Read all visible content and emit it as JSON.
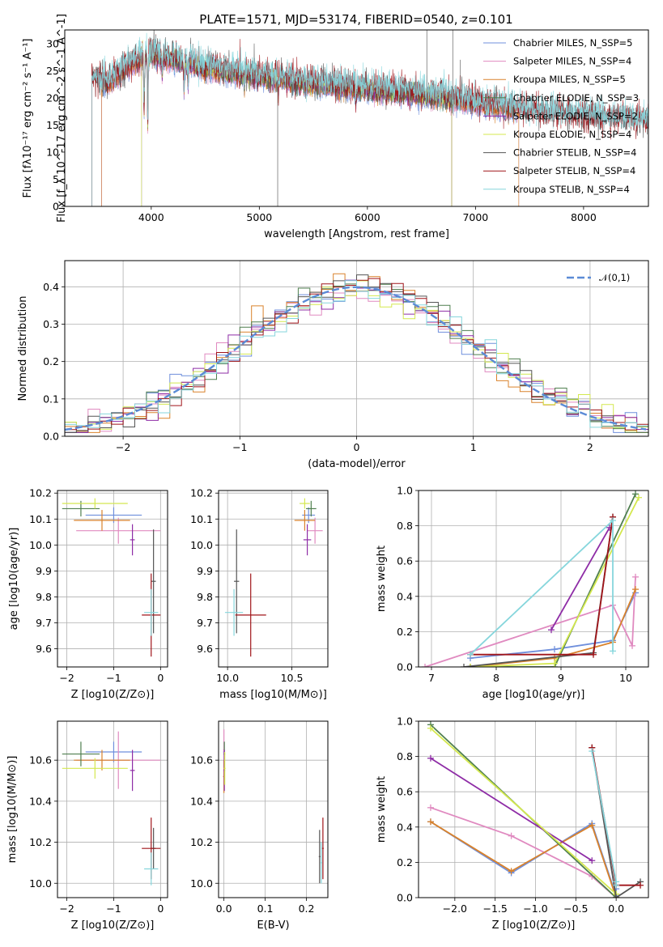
{
  "title": "PLATE=1571, MJD=53174, FIBERID=0540, z=0.101",
  "colors": {
    "Chabrier MILES": "#6f8fdc",
    "Salpeter MILES": "#e08ac0",
    "Kroupa MILES": "#d9822b",
    "Chabrier ELODIE": "#4f7f4f",
    "Salpeter ELODIE": "#8e2ca6",
    "Kroupa ELODIE": "#d4e84f",
    "Chabrier STELIB": "#555555",
    "Salpeter STELIB": "#a0151a",
    "Kroupa STELIB": "#86d6dc",
    "normal": "#5b8bd6"
  },
  "chart_data": [
    {
      "id": "spectrum",
      "type": "line",
      "xlabel": "wavelength [Angstrom, rest frame]",
      "ylabel": "Flux [f_λ 10^-17 erg cm^-2 s^-1 A^-1]",
      "xlim": [
        3200,
        8600
      ],
      "ylim": [
        0,
        32.5
      ],
      "xticks": [
        4000,
        5000,
        6000,
        7000,
        8000
      ],
      "yticks": [
        0,
        5,
        10,
        15,
        20,
        25,
        30
      ],
      "legend_position": "top-right",
      "legend": [
        {
          "name": "Chabrier MILES, N_SSP=5",
          "model": "Chabrier MILES",
          "nssp": 5
        },
        {
          "name": "Salpeter MILES, N_SSP=4",
          "model": "Salpeter MILES",
          "nssp": 4
        },
        {
          "name": "Kroupa MILES, N_SSP=5",
          "model": "Kroupa MILES",
          "nssp": 5
        },
        {
          "name": "Chabrier ELODIE, N_SSP=3",
          "model": "Chabrier ELODIE",
          "nssp": 3
        },
        {
          "name": "Salpeter ELODIE, N_SSP=2",
          "model": "Salpeter ELODIE",
          "nssp": 2
        },
        {
          "name": "Kroupa ELODIE, N_SSP=4",
          "model": "Kroupa ELODIE",
          "nssp": 4
        },
        {
          "name": "Chabrier STELIB, N_SSP=4",
          "model": "Chabrier STELIB",
          "nssp": 4
        },
        {
          "name": "Salpeter STELIB, N_SSP=4",
          "model": "Salpeter STELIB",
          "nssp": 4
        },
        {
          "name": "Kroupa STELIB, N_SSP=4",
          "model": "Kroupa STELIB",
          "nssp": 4
        }
      ],
      "continuum": {
        "x": [
          3450,
          3600,
          3800,
          4000,
          4200,
          4500,
          5000,
          5500,
          6000,
          6500,
          7000,
          7500,
          8000,
          8500
        ],
        "y": [
          23.5,
          22.5,
          26,
          28,
          27,
          25.5,
          23.8,
          22.5,
          21.5,
          20.5,
          19,
          17.3,
          16.3,
          15.5
        ]
      },
      "absorption_lines": [
        {
          "x": 3934,
          "depth": 10
        },
        {
          "x": 3968,
          "depth": 13
        },
        {
          "x": 4102,
          "depth": 4
        },
        {
          "x": 4304,
          "depth": 5
        },
        {
          "x": 4340,
          "depth": 4
        },
        {
          "x": 4861,
          "depth": 2
        },
        {
          "x": 5175,
          "depth": 3
        },
        {
          "x": 5893,
          "depth": 2.5
        }
      ],
      "model_ranges": [
        {
          "model": "Chabrier MILES",
          "range": [
            3540,
            7400
          ]
        },
        {
          "model": "Salpeter MILES",
          "range": [
            3540,
            7400
          ]
        },
        {
          "model": "Kroupa MILES",
          "range": [
            3540,
            7400
          ]
        },
        {
          "model": "Chabrier ELODIE",
          "range": [
            3910,
            6780
          ]
        },
        {
          "model": "Salpeter ELODIE",
          "range": [
            3910,
            6780
          ]
        },
        {
          "model": "Kroupa ELODIE",
          "range": [
            3910,
            6780
          ]
        },
        {
          "model": "Chabrier STELIB",
          "range": [
            3450,
            8600
          ]
        },
        {
          "model": "Salpeter STELIB",
          "range": [
            3450,
            8600
          ]
        },
        {
          "model": "Kroupa STELIB",
          "range": [
            3450,
            8600
          ]
        }
      ],
      "data_spikes": [
        {
          "x": 5170,
          "y": 0
        },
        {
          "x": 6550,
          "y": 32.5
        },
        {
          "x": 6790,
          "y": 32.5
        },
        {
          "x": 6860,
          "y": 27
        }
      ]
    },
    {
      "id": "residuals",
      "type": "histogram",
      "xlabel": "(data-model)/error",
      "ylabel": "Normed distribution",
      "xlim": [
        -2.5,
        2.5
      ],
      "ylim": [
        0,
        0.47
      ],
      "xticks": [
        -2,
        -1,
        0,
        1,
        2
      ],
      "yticks": [
        0.0,
        0.1,
        0.2,
        0.3,
        0.4
      ],
      "grid": true,
      "legend": [
        {
          "name": "𝒩(0,1)",
          "style": "dashed"
        }
      ],
      "legend_position": "top-right",
      "bin_width": 0.1
    },
    {
      "id": "z-age",
      "type": "errorbar",
      "xlabel": "Z [log10(Z/Z⊙)]",
      "ylabel": "age [log10(age/yr)]",
      "xlim": [
        -2.2,
        0.15
      ],
      "ylim": [
        9.53,
        10.21
      ],
      "xticks": [
        -2,
        -1,
        0
      ],
      "yticks": [
        9.6,
        9.7,
        9.8,
        9.9,
        10.0,
        10.1,
        10.2
      ],
      "grid": true,
      "points": [
        {
          "model": "Chabrier MILES",
          "x": -1.0,
          "xerr": 0.6,
          "y": 10.115,
          "yerr": 0.03
        },
        {
          "model": "Salpeter MILES",
          "x": -0.9,
          "xerr": 0.9,
          "y": 10.055,
          "yerr": 0.05
        },
        {
          "model": "Kroupa MILES",
          "x": -1.25,
          "xerr": 0.6,
          "y": 10.095,
          "yerr": 0.04
        },
        {
          "model": "Chabrier ELODIE",
          "x": -1.7,
          "xerr": 0.4,
          "y": 10.14,
          "yerr": 0.03
        },
        {
          "model": "Salpeter ELODIE",
          "x": -0.6,
          "xerr": 0.05,
          "y": 10.02,
          "yerr": 0.06
        },
        {
          "model": "Kroupa ELODIE",
          "x": -1.4,
          "xerr": 0.7,
          "y": 10.16,
          "yerr": 0.02
        },
        {
          "model": "Chabrier STELIB",
          "x": -0.15,
          "xerr": 0.05,
          "y": 9.86,
          "yerr": 0.2
        },
        {
          "model": "Salpeter STELIB",
          "x": -0.2,
          "xerr": 0.2,
          "y": 9.73,
          "yerr": 0.16
        },
        {
          "model": "Kroupa STELIB",
          "x": -0.2,
          "xerr": 0.15,
          "y": 9.74,
          "yerr": 0.09
        }
      ]
    },
    {
      "id": "mass-age",
      "type": "errorbar",
      "xlabel": "mass [log10(M/M⊙)]",
      "ylabel": "",
      "xlim": [
        9.93,
        10.78
      ],
      "ylim": [
        9.53,
        10.21
      ],
      "xticks": [
        10.0,
        10.5
      ],
      "yticks": [
        9.6,
        9.7,
        9.8,
        9.9,
        10.0,
        10.1,
        10.2
      ],
      "grid": true,
      "points": [
        {
          "model": "Chabrier MILES",
          "x": 10.63,
          "xerr": 0.05,
          "y": 10.115,
          "yerr": 0.03
        },
        {
          "model": "Salpeter MILES",
          "x": 10.68,
          "xerr": 0.06,
          "y": 10.055,
          "yerr": 0.05
        },
        {
          "model": "Kroupa MILES",
          "x": 10.6,
          "xerr": 0.08,
          "y": 10.095,
          "yerr": 0.04
        },
        {
          "model": "Chabrier ELODIE",
          "x": 10.65,
          "xerr": 0.04,
          "y": 10.14,
          "yerr": 0.03
        },
        {
          "model": "Salpeter ELODIE",
          "x": 10.62,
          "xerr": 0.03,
          "y": 10.02,
          "yerr": 0.06
        },
        {
          "model": "Kroupa ELODIE",
          "x": 10.6,
          "xerr": 0.04,
          "y": 10.16,
          "yerr": 0.02
        },
        {
          "model": "Chabrier STELIB",
          "x": 10.07,
          "xerr": 0.02,
          "y": 9.86,
          "yerr": 0.2
        },
        {
          "model": "Salpeter STELIB",
          "x": 10.18,
          "xerr": 0.12,
          "y": 9.73,
          "yerr": 0.16
        },
        {
          "model": "Kroupa STELIB",
          "x": 10.05,
          "xerr": 0.07,
          "y": 9.74,
          "yerr": 0.09
        }
      ]
    },
    {
      "id": "age-weight",
      "type": "line",
      "xlabel": "age [log10(age/yr)]",
      "ylabel": "mass weight",
      "xlim": [
        6.8,
        10.35
      ],
      "ylim": [
        0,
        1
      ],
      "xticks": [
        7,
        8,
        9,
        10
      ],
      "yticks": [
        0.0,
        0.2,
        0.4,
        0.6,
        0.8,
        1.0
      ],
      "grid": true,
      "series": [
        {
          "model": "Chabrier MILES",
          "x": [
            7.6,
            8.9,
            9.8,
            10.15
          ],
          "y": [
            0.05,
            0.1,
            0.15,
            0.42
          ]
        },
        {
          "model": "Salpeter MILES",
          "x": [
            6.9,
            9.8,
            10.1,
            10.15
          ],
          "y": [
            0.0,
            0.35,
            0.12,
            0.51
          ]
        },
        {
          "model": "Kroupa MILES",
          "x": [
            7.6,
            8.9,
            9.8,
            10.15
          ],
          "y": [
            0.0,
            0.05,
            0.14,
            0.44
          ]
        },
        {
          "model": "Chabrier ELODIE",
          "x": [
            7.6,
            8.9,
            10.15
          ],
          "y": [
            0.0,
            0.0,
            0.98
          ]
        },
        {
          "model": "Salpeter ELODIE",
          "x": [
            8.85,
            9.75
          ],
          "y": [
            0.21,
            0.79
          ]
        },
        {
          "model": "Kroupa ELODIE",
          "x": [
            7.6,
            8.9,
            10.2
          ],
          "y": [
            0.0,
            0.02,
            0.96
          ]
        },
        {
          "model": "Chabrier STELIB",
          "x": [
            7.5,
            9.5,
            9.8
          ],
          "y": [
            0.0,
            0.08,
            0.85
          ]
        },
        {
          "model": "Salpeter STELIB",
          "x": [
            7.6,
            9.5,
            9.8
          ],
          "y": [
            0.07,
            0.07,
            0.85
          ]
        },
        {
          "model": "Kroupa STELIB",
          "x": [
            7.6,
            9.8,
            9.8
          ],
          "y": [
            0.07,
            0.83,
            0.09
          ]
        }
      ]
    },
    {
      "id": "z-mass",
      "type": "errorbar",
      "xlabel": "Z [log10(Z/Z⊙)]",
      "ylabel": "mass [log10(M/M⊙)]",
      "xlim": [
        -2.2,
        0.15
      ],
      "ylim": [
        9.93,
        10.79
      ],
      "xticks": [
        -2,
        -1,
        0
      ],
      "yticks": [
        10.0,
        10.2,
        10.4,
        10.6
      ],
      "grid": true,
      "points": [
        {
          "model": "Chabrier MILES",
          "x": -1.0,
          "xerr": 0.6,
          "y": 10.64,
          "yerr": 0.05
        },
        {
          "model": "Salpeter MILES",
          "x": -0.9,
          "xerr": 0.9,
          "y": 10.6,
          "yerr": 0.14
        },
        {
          "model": "Kroupa MILES",
          "x": -1.25,
          "xerr": 0.6,
          "y": 10.6,
          "yerr": 0.05
        },
        {
          "model": "Chabrier ELODIE",
          "x": -1.7,
          "xerr": 0.4,
          "y": 10.63,
          "yerr": 0.06
        },
        {
          "model": "Salpeter ELODIE",
          "x": -0.6,
          "xerr": 0.05,
          "y": 10.55,
          "yerr": 0.1
        },
        {
          "model": "Kroupa ELODIE",
          "x": -1.4,
          "xerr": 0.7,
          "y": 10.56,
          "yerr": 0.05
        },
        {
          "model": "Chabrier STELIB",
          "x": -0.15,
          "xerr": 0.05,
          "y": 10.17,
          "yerr": 0.1
        },
        {
          "model": "Salpeter STELIB",
          "x": -0.2,
          "xerr": 0.2,
          "y": 10.17,
          "yerr": 0.15
        },
        {
          "model": "Kroupa STELIB",
          "x": -0.2,
          "xerr": 0.15,
          "y": 10.07,
          "yerr": 0.08
        }
      ]
    },
    {
      "id": "ebv-mass",
      "type": "errorbar",
      "xlabel": "E(B-V)",
      "ylabel": "",
      "xlim": [
        -0.013,
        0.252
      ],
      "ylim": [
        9.93,
        10.79
      ],
      "xticks": [
        0.0,
        0.1,
        0.2
      ],
      "yticks": [
        10.0,
        10.2,
        10.4,
        10.6
      ],
      "grid": true,
      "points": [
        {
          "model": "Chabrier MILES",
          "x": 0.0,
          "xerr": 0.002,
          "y": 10.64,
          "yerr": 0.05
        },
        {
          "model": "Salpeter MILES",
          "x": 0.0,
          "xerr": 0.002,
          "y": 10.65,
          "yerr": 0.1
        },
        {
          "model": "Kroupa MILES",
          "x": 0.0,
          "xerr": 0.002,
          "y": 10.52,
          "yerr": 0.08
        },
        {
          "model": "Chabrier ELODIE",
          "x": 0.001,
          "xerr": 0.002,
          "y": 10.63,
          "yerr": 0.06
        },
        {
          "model": "Salpeter ELODIE",
          "x": 0.001,
          "xerr": 0.002,
          "y": 10.55,
          "yerr": 0.1
        },
        {
          "model": "Kroupa ELODIE",
          "x": 0.002,
          "xerr": 0.002,
          "y": 10.56,
          "yerr": 0.08
        },
        {
          "model": "Chabrier STELIB",
          "x": 0.232,
          "xerr": 0.002,
          "y": 10.13,
          "yerr": 0.13
        },
        {
          "model": "Salpeter STELIB",
          "x": 0.24,
          "xerr": 0.002,
          "y": 10.17,
          "yerr": 0.15
        },
        {
          "model": "Kroupa STELIB",
          "x": 0.236,
          "xerr": 0.002,
          "y": 10.1,
          "yerr": 0.1
        }
      ]
    },
    {
      "id": "z-weight",
      "type": "line",
      "xlabel": "Z [log10(Z/Z⊙)]",
      "ylabel": "mass weight",
      "xlim": [
        -2.45,
        0.4
      ],
      "ylim": [
        0,
        1
      ],
      "xticks": [
        -2.0,
        -1.5,
        -1.0,
        -0.5,
        0.0
      ],
      "yticks": [
        0.0,
        0.2,
        0.4,
        0.6,
        0.8,
        1.0
      ],
      "grid": true,
      "series": [
        {
          "model": "Chabrier MILES",
          "x": [
            -2.3,
            -1.3,
            -0.3,
            0.0,
            0.0
          ],
          "y": [
            0.43,
            0.14,
            0.42,
            0.01,
            0.05
          ]
        },
        {
          "model": "Salpeter MILES",
          "x": [
            -2.3,
            -1.3,
            -0.3,
            0.0
          ],
          "y": [
            0.51,
            0.35,
            0.12,
            0.0
          ]
        },
        {
          "model": "Kroupa MILES",
          "x": [
            -2.3,
            -1.3,
            -0.3,
            0.0,
            0.0
          ],
          "y": [
            0.43,
            0.15,
            0.41,
            0.0,
            0.0
          ]
        },
        {
          "model": "Chabrier ELODIE",
          "x": [
            -2.3,
            0.0,
            0.0
          ],
          "y": [
            0.98,
            0.0,
            0.02
          ]
        },
        {
          "model": "Salpeter ELODIE",
          "x": [
            -2.3,
            -0.3
          ],
          "y": [
            0.79,
            0.21
          ]
        },
        {
          "model": "Kroupa ELODIE",
          "x": [
            -2.3,
            0.0,
            0.0
          ],
          "y": [
            0.96,
            0.02,
            0.02
          ]
        },
        {
          "model": "Chabrier STELIB",
          "x": [
            -0.3,
            0.0,
            0.3
          ],
          "y": [
            0.85,
            0.0,
            0.09
          ]
        },
        {
          "model": "Salpeter STELIB",
          "x": [
            -0.3,
            0.0,
            0.3
          ],
          "y": [
            0.85,
            0.07,
            0.07
          ]
        },
        {
          "model": "Kroupa STELIB",
          "x": [
            -0.3,
            0.0,
            0.0
          ],
          "y": [
            0.83,
            0.09,
            0.07
          ]
        }
      ]
    }
  ]
}
